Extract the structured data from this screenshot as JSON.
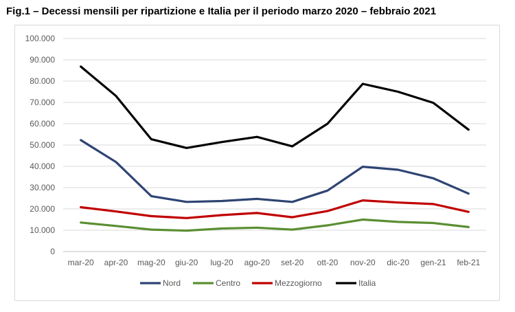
{
  "title": "Fig.1 – Decessi mensili per ripartizione e Italia per il periodo marzo 2020 – febbraio 2021",
  "chart_data": {
    "type": "line",
    "title": "Fig.1 – Decessi mensili per ripartizione e Italia per il periodo marzo 2020 – febbraio 2021",
    "xlabel": "",
    "ylabel": "",
    "ylim": [
      0,
      100000
    ],
    "yticks": [
      0,
      10000,
      20000,
      30000,
      40000,
      50000,
      60000,
      70000,
      80000,
      90000,
      100000
    ],
    "ytick_labels": [
      "0",
      "10.000",
      "20.000",
      "30.000",
      "40.000",
      "50.000",
      "60.000",
      "70.000",
      "80.000",
      "90.000",
      "100.000"
    ],
    "grid": true,
    "legend_position": "bottom",
    "categories": [
      "mar-20",
      "apr-20",
      "mag-20",
      "giu-20",
      "lug-20",
      "ago-20",
      "set-20",
      "ott-20",
      "nov-20",
      "dic-20",
      "gen-21",
      "feb-21"
    ],
    "series": [
      {
        "name": "Nord",
        "color": "#2e4473",
        "values": [
          52300,
          42000,
          26000,
          23300,
          23700,
          24700,
          23300,
          28600,
          39800,
          38400,
          34400,
          27200
        ]
      },
      {
        "name": "Centro",
        "color": "#5b8e32",
        "values": [
          13600,
          12000,
          10300,
          9800,
          10800,
          11200,
          10300,
          12300,
          15000,
          13900,
          13400,
          11500
        ]
      },
      {
        "name": "Mezzogiorno",
        "color": "#c00000",
        "values": [
          20800,
          18800,
          16600,
          15700,
          17100,
          18100,
          16100,
          19000,
          24000,
          23000,
          22300,
          18600
        ]
      },
      {
        "name": "Italia",
        "color": "#000000",
        "values": [
          86800,
          73000,
          52700,
          48600,
          51400,
          53800,
          49400,
          60000,
          78700,
          75000,
          69800,
          57200
        ]
      }
    ]
  }
}
